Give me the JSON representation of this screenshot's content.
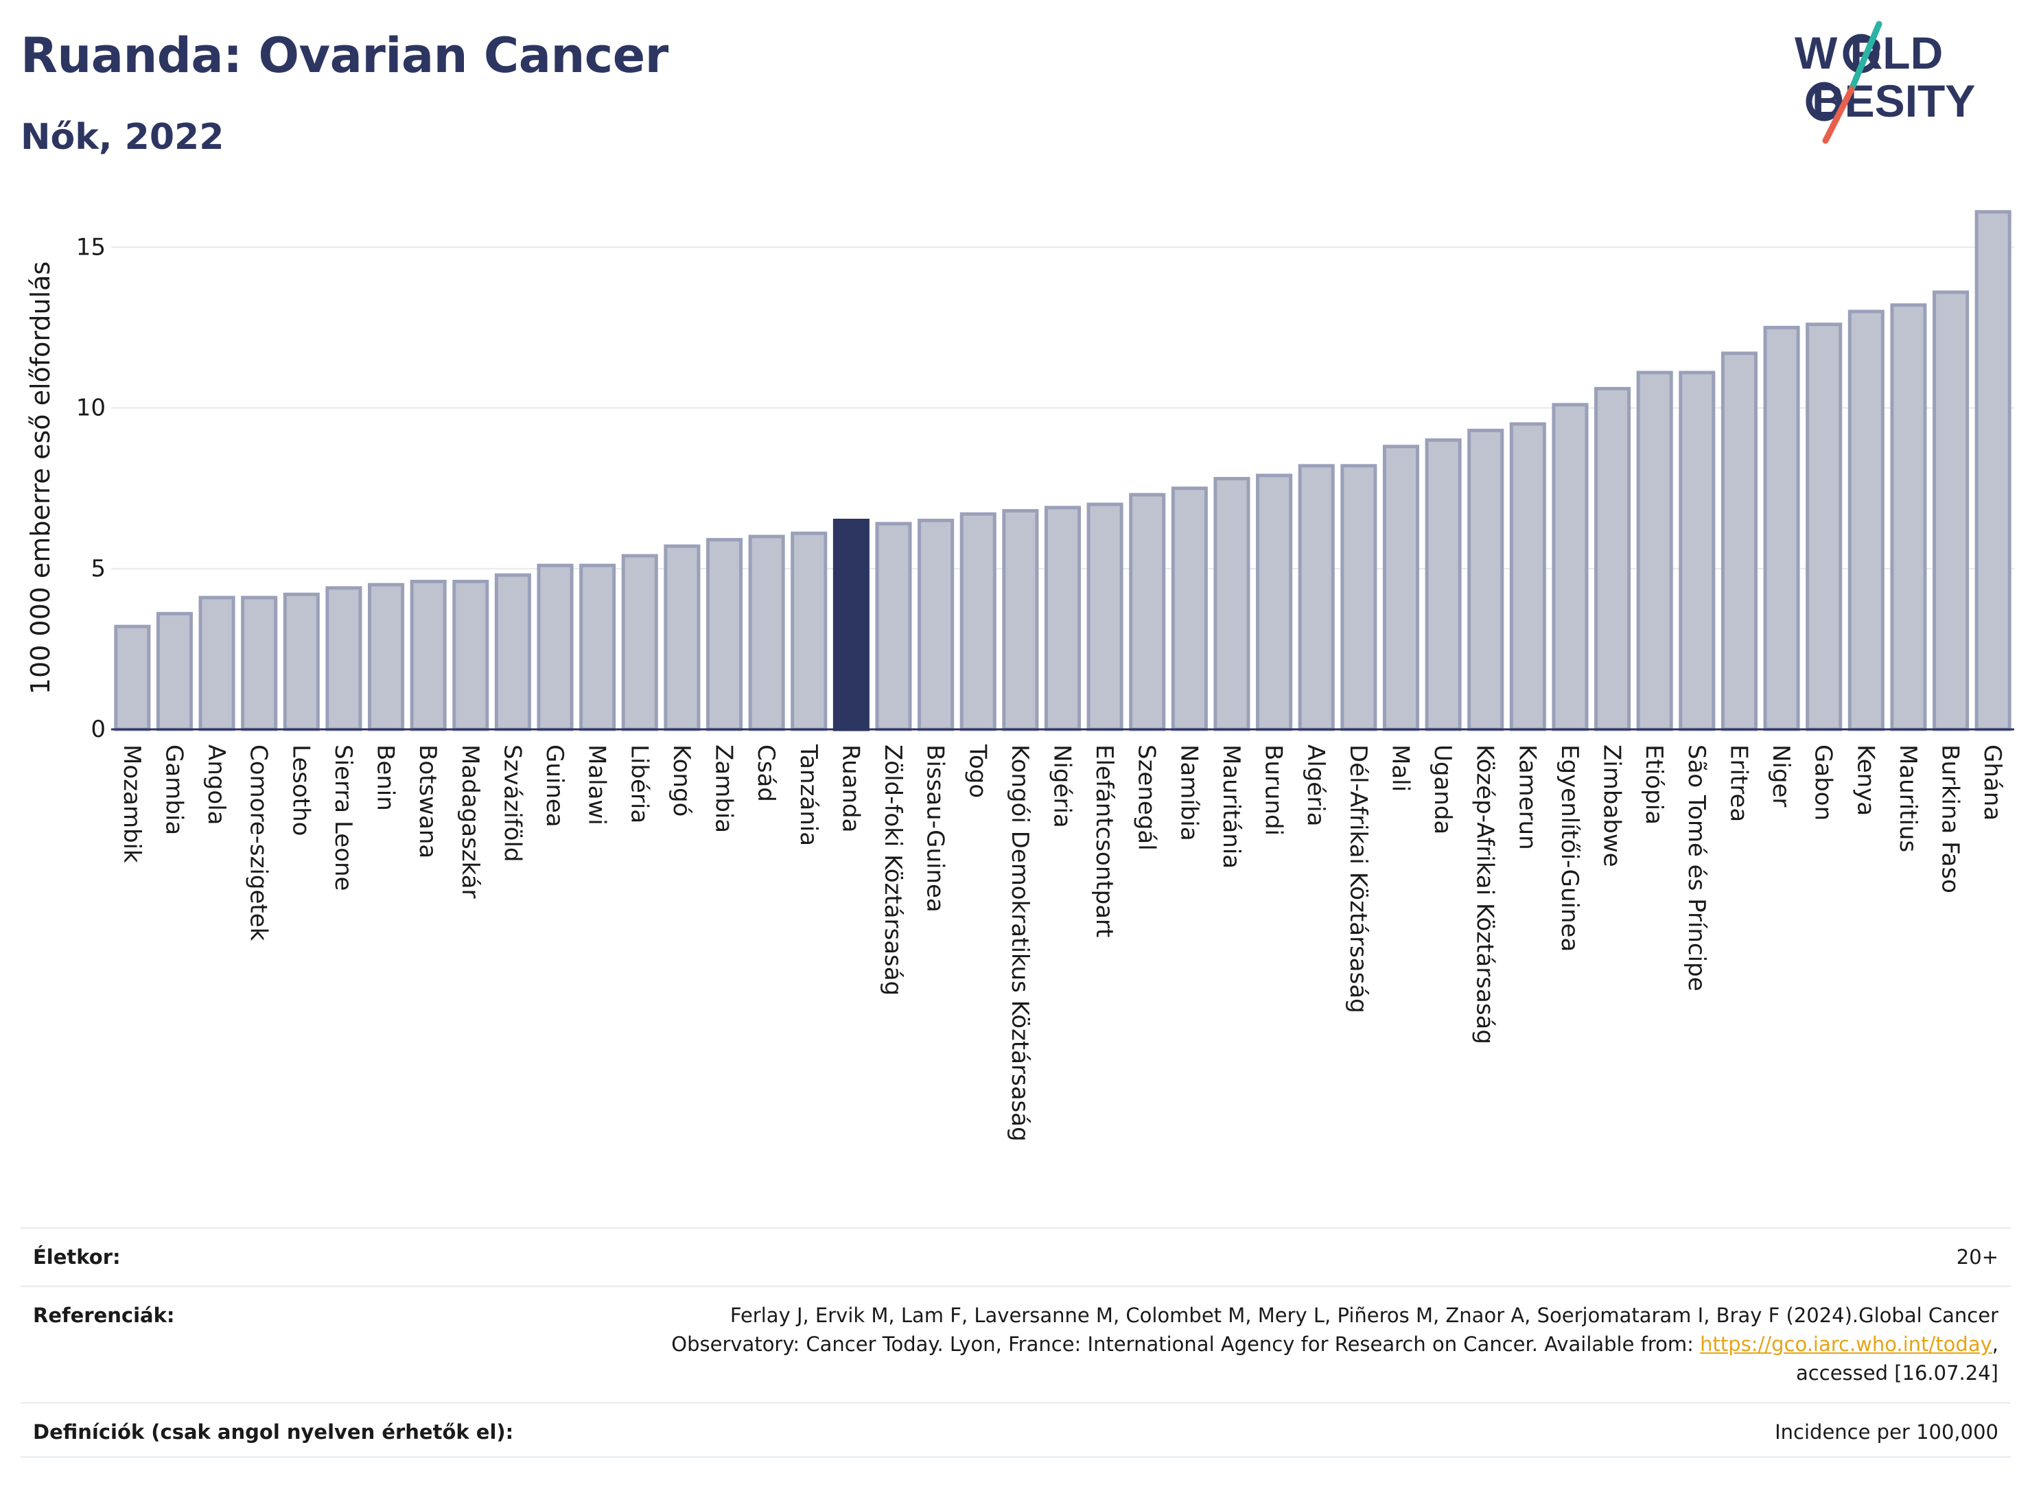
{
  "header": {
    "title": "Ruanda: Ovarian Cancer",
    "subtitle": "Nők, 2022"
  },
  "logo": {
    "line1": "W RLD",
    "line2": "BESITY",
    "brand_dark": "#2d3561",
    "brand_teal": "#2bb3a3",
    "brand_coral": "#e8604c"
  },
  "colors": {
    "bar_fill": "#bfc3d0",
    "bar_stroke": "#9aa0b8",
    "highlight": "#2d3561",
    "grid": "#e6e8ee",
    "axis": "#2d3561"
  },
  "chart_data": {
    "type": "bar",
    "ylabel": "100 000 emberre eső előfordulás",
    "ylim": [
      0,
      16.5
    ],
    "yticks": [
      0,
      5,
      10,
      15
    ],
    "grid": true,
    "highlight": "Ruanda",
    "categories": [
      "Mozambik",
      "Gambia",
      "Angola",
      "Comore-szigetek",
      "Lesotho",
      "Sierra Leone",
      "Benin",
      "Botswana",
      "Madagaszkár",
      "Szváziföld",
      "Guinea",
      "Malawi",
      "Libéria",
      "Kongó",
      "Zambia",
      "Csád",
      "Tanzánia",
      "Ruanda",
      "Zöld-foki Köztársaság",
      "Bissau-Guinea",
      "Togo",
      "Kongói Demokratikus Köztársaság",
      "Nigéria",
      "Elefántcsontpart",
      "Szenegál",
      "Namíbia",
      "Mauritánia",
      "Burundi",
      "Algéria",
      "Dél-Afrikai Köztársaság",
      "Mali",
      "Uganda",
      "Közép-Afrikai Köztársaság",
      "Kamerun",
      "Egyenlítői-Guinea",
      "Zimbabwe",
      "Etiópia",
      "São Tomé és Príncipe",
      "Eritrea",
      "Niger",
      "Gabon",
      "Kenya",
      "Mauritius",
      "Burkina Faso",
      "Ghána"
    ],
    "values": [
      3.2,
      3.6,
      4.1,
      4.1,
      4.2,
      4.4,
      4.5,
      4.6,
      4.6,
      4.8,
      5.1,
      5.1,
      5.4,
      5.7,
      5.9,
      6.0,
      6.1,
      6.5,
      6.4,
      6.5,
      6.7,
      6.8,
      6.9,
      7.0,
      7.3,
      7.5,
      7.8,
      7.9,
      8.2,
      8.2,
      8.8,
      9.0,
      9.3,
      9.5,
      10.1,
      10.6,
      11.1,
      11.1,
      11.7,
      12.5,
      12.6,
      13.0,
      13.2,
      13.6,
      16.1
    ]
  },
  "info": {
    "age_label": "Életkor:",
    "age_value": "20+",
    "ref_label": "Referenciák:",
    "ref_line1": "Ferlay J, Ervik M, Lam F, Laversanne M, Colombet M, Mery L, Piñeros M, Znaor A, Soerjomataram I, Bray F (2024).Global Cancer",
    "ref_line2_pre": "Observatory: Cancer Today. Lyon, France: International Agency for Research on Cancer. Available from: ",
    "ref_link": "https://gco.iarc.who.int/today",
    "ref_line2_post": ",",
    "ref_line3": "accessed [16.07.24]",
    "def_label": "Definíciók (csak angol nyelven érhetők el):",
    "def_value": "Incidence per 100,000"
  }
}
